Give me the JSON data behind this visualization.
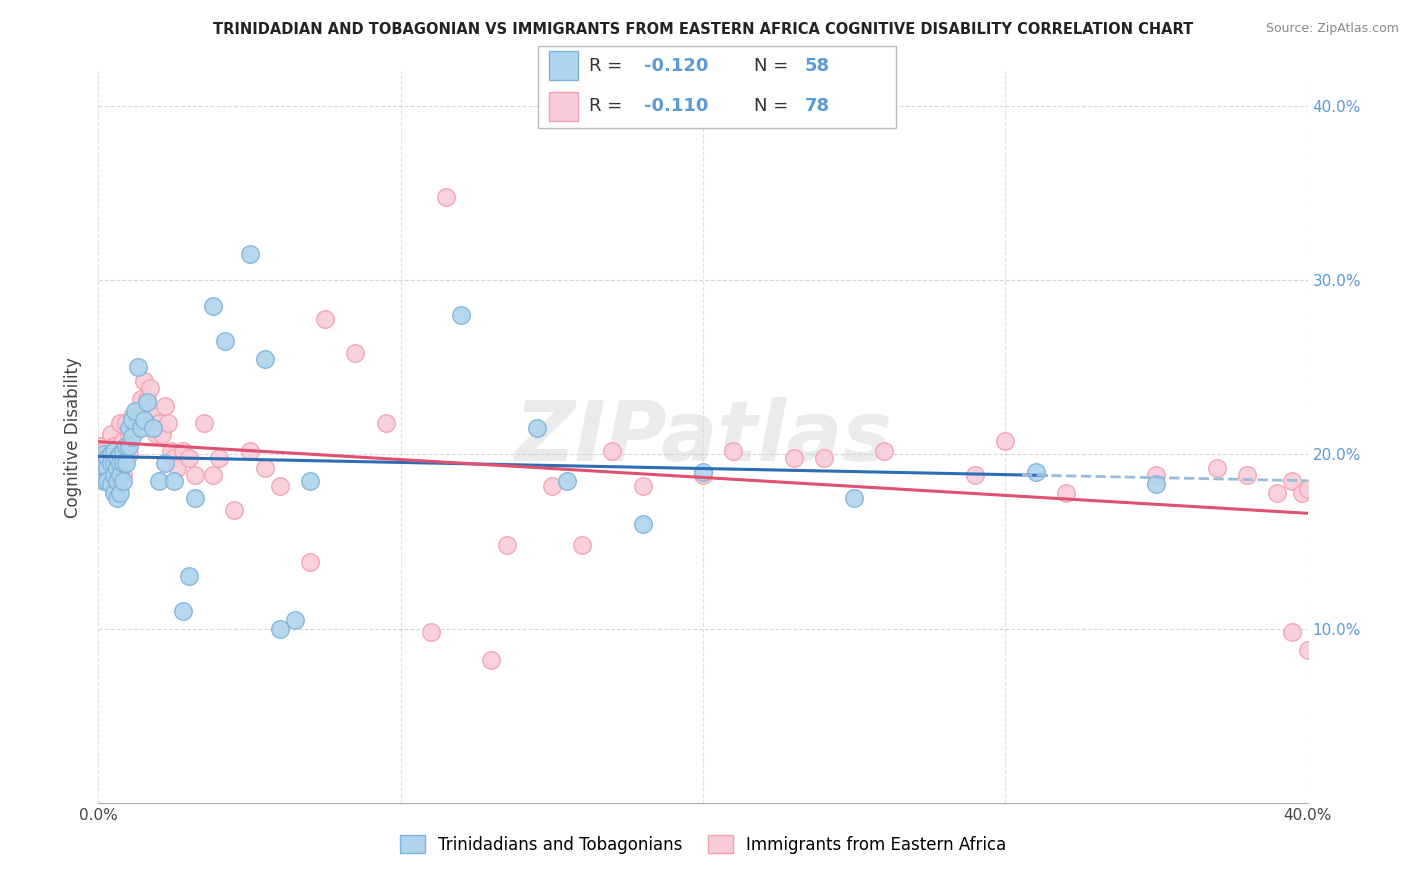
{
  "title": "TRINIDADIAN AND TOBAGONIAN VS IMMIGRANTS FROM EASTERN AFRICA COGNITIVE DISABILITY CORRELATION CHART",
  "source": "Source: ZipAtlas.com",
  "ylabel": "Cognitive Disability",
  "xlim": [
    0.0,
    0.4
  ],
  "ylim": [
    0.0,
    0.42
  ],
  "yticks": [
    0.1,
    0.2,
    0.3,
    0.4
  ],
  "ytick_labels": [
    "10.0%",
    "20.0%",
    "30.0%",
    "40.0%"
  ],
  "blue_color": "#7EB2D8",
  "blue_fill": "#AED4EE",
  "pink_color": "#F4A0B0",
  "pink_fill": "#F9CCDA",
  "line_blue": "#2E6EB5",
  "line_pink": "#E05070",
  "line_dashed_color": "#99BBDD",
  "watermark": "ZIPatlas",
  "legend_label1": "Trinidadians and Tobagonians",
  "legend_label2": "Immigrants from Eastern Africa",
  "blue_x": [
    0.001,
    0.001,
    0.002,
    0.002,
    0.003,
    0.003,
    0.003,
    0.004,
    0.004,
    0.004,
    0.005,
    0.005,
    0.005,
    0.005,
    0.006,
    0.006,
    0.006,
    0.006,
    0.007,
    0.007,
    0.007,
    0.007,
    0.008,
    0.008,
    0.008,
    0.009,
    0.009,
    0.01,
    0.01,
    0.011,
    0.011,
    0.012,
    0.013,
    0.014,
    0.015,
    0.016,
    0.018,
    0.02,
    0.022,
    0.025,
    0.028,
    0.03,
    0.032,
    0.038,
    0.042,
    0.05,
    0.055,
    0.06,
    0.065,
    0.07,
    0.12,
    0.145,
    0.155,
    0.18,
    0.2,
    0.25,
    0.31,
    0.35
  ],
  "blue_y": [
    0.195,
    0.188,
    0.2,
    0.185,
    0.198,
    0.192,
    0.185,
    0.2,
    0.195,
    0.183,
    0.202,
    0.195,
    0.188,
    0.178,
    0.198,
    0.192,
    0.185,
    0.175,
    0.2,
    0.195,
    0.188,
    0.178,
    0.202,
    0.195,
    0.185,
    0.205,
    0.195,
    0.215,
    0.205,
    0.21,
    0.22,
    0.225,
    0.25,
    0.215,
    0.22,
    0.23,
    0.215,
    0.185,
    0.195,
    0.185,
    0.11,
    0.13,
    0.175,
    0.285,
    0.265,
    0.315,
    0.255,
    0.1,
    0.105,
    0.185,
    0.28,
    0.215,
    0.185,
    0.16,
    0.19,
    0.175,
    0.19,
    0.183
  ],
  "pink_x": [
    0.001,
    0.001,
    0.002,
    0.002,
    0.003,
    0.003,
    0.004,
    0.004,
    0.005,
    0.005,
    0.005,
    0.006,
    0.006,
    0.006,
    0.007,
    0.007,
    0.007,
    0.008,
    0.008,
    0.009,
    0.009,
    0.01,
    0.01,
    0.011,
    0.012,
    0.013,
    0.014,
    0.015,
    0.016,
    0.017,
    0.018,
    0.019,
    0.02,
    0.021,
    0.022,
    0.023,
    0.024,
    0.025,
    0.026,
    0.028,
    0.03,
    0.032,
    0.035,
    0.038,
    0.04,
    0.045,
    0.05,
    0.055,
    0.06,
    0.07,
    0.075,
    0.085,
    0.095,
    0.11,
    0.115,
    0.13,
    0.135,
    0.15,
    0.16,
    0.17,
    0.18,
    0.2,
    0.21,
    0.23,
    0.24,
    0.26,
    0.29,
    0.3,
    0.32,
    0.35,
    0.37,
    0.38,
    0.39,
    0.395,
    0.395,
    0.398,
    0.4,
    0.4
  ],
  "pink_y": [
    0.205,
    0.195,
    0.202,
    0.192,
    0.2,
    0.192,
    0.212,
    0.195,
    0.205,
    0.195,
    0.185,
    0.202,
    0.192,
    0.185,
    0.218,
    0.205,
    0.195,
    0.208,
    0.188,
    0.218,
    0.205,
    0.212,
    0.2,
    0.222,
    0.218,
    0.222,
    0.232,
    0.242,
    0.232,
    0.238,
    0.222,
    0.212,
    0.218,
    0.212,
    0.228,
    0.218,
    0.202,
    0.198,
    0.192,
    0.202,
    0.198,
    0.188,
    0.218,
    0.188,
    0.198,
    0.168,
    0.202,
    0.192,
    0.182,
    0.138,
    0.278,
    0.258,
    0.218,
    0.098,
    0.348,
    0.082,
    0.148,
    0.182,
    0.148,
    0.202,
    0.182,
    0.188,
    0.202,
    0.198,
    0.198,
    0.202,
    0.188,
    0.208,
    0.178,
    0.188,
    0.192,
    0.188,
    0.178,
    0.185,
    0.098,
    0.178,
    0.18,
    0.088
  ]
}
